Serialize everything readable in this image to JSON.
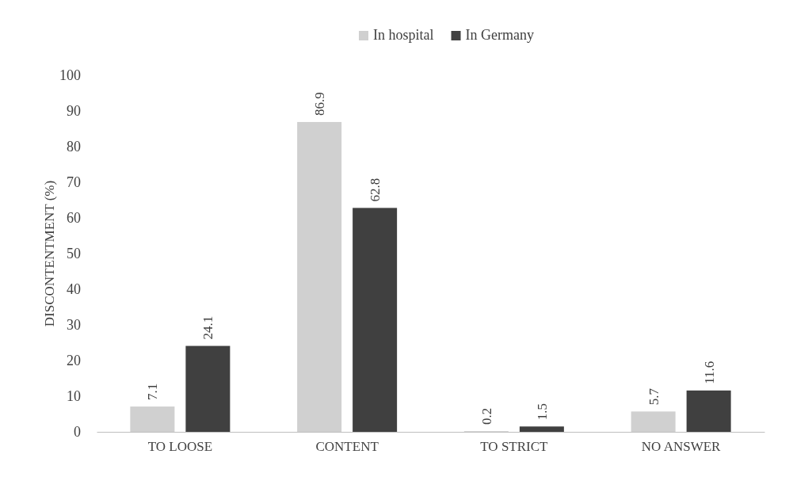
{
  "chart_data": {
    "type": "bar",
    "ylabel": "DISCONTENTMENT (%)",
    "categories": [
      "TO LOOSE",
      "CONTENT",
      "TO STRICT",
      "NO ANSWER"
    ],
    "series": [
      {
        "name": "In hospital",
        "color": "#d0d0d0",
        "values": [
          7.1,
          86.9,
          0.2,
          5.7
        ]
      },
      {
        "name": "In Germany",
        "color": "#404040",
        "values": [
          24.1,
          62.8,
          1.5,
          11.6
        ]
      }
    ],
    "ylim": [
      0,
      100
    ],
    "yticks": [
      0,
      10,
      20,
      30,
      40,
      50,
      60,
      70,
      80,
      90,
      100
    ],
    "grid": false,
    "legend": "top",
    "data_labels": true
  }
}
